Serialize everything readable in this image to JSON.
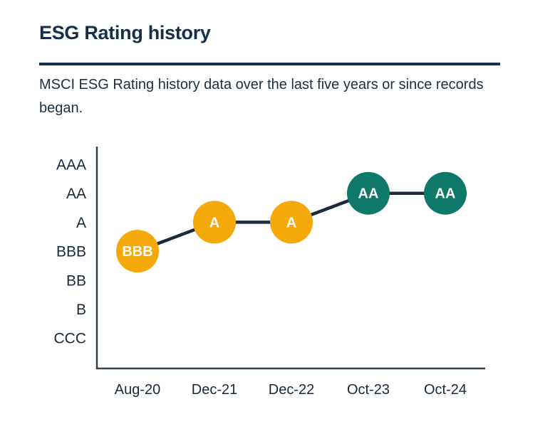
{
  "page": {
    "title": "ESG Rating history",
    "subtitle": "MSCI ESG Rating history data over the last five years or since records began."
  },
  "colors": {
    "heading_text": "#142F49",
    "body_text": "#1E2E3F",
    "divider": "#14304A",
    "axis_line": "#35444F",
    "axis_label_text": "#17293B",
    "connector_line": "#1B2A3E",
    "average_rating_fill": "#F5A80A",
    "leader_rating_fill": "#0E7969",
    "point_label_text": "#FFFFFF"
  },
  "chart_data": {
    "type": "line",
    "title": "ESG Rating history",
    "subtitle": "MSCI ESG Rating history data over the last five years or since records began.",
    "x": [
      "Aug-20",
      "Dec-21",
      "Dec-22",
      "Oct-23",
      "Oct-24"
    ],
    "values": [
      "BBB",
      "A",
      "A",
      "AA",
      "AA"
    ],
    "marker_labels": [
      "BBB",
      "A",
      "A",
      "AA",
      "AA"
    ],
    "y_scale_bottom_to_top": [
      "CCC",
      "B",
      "BB",
      "BBB",
      "A",
      "AA",
      "AAA"
    ],
    "point_colors": [
      "#F5A80A",
      "#F5A80A",
      "#F5A80A",
      "#0E7969",
      "#0E7969"
    ],
    "xlabel": "",
    "ylabel": "",
    "grid": false,
    "legend": false
  }
}
